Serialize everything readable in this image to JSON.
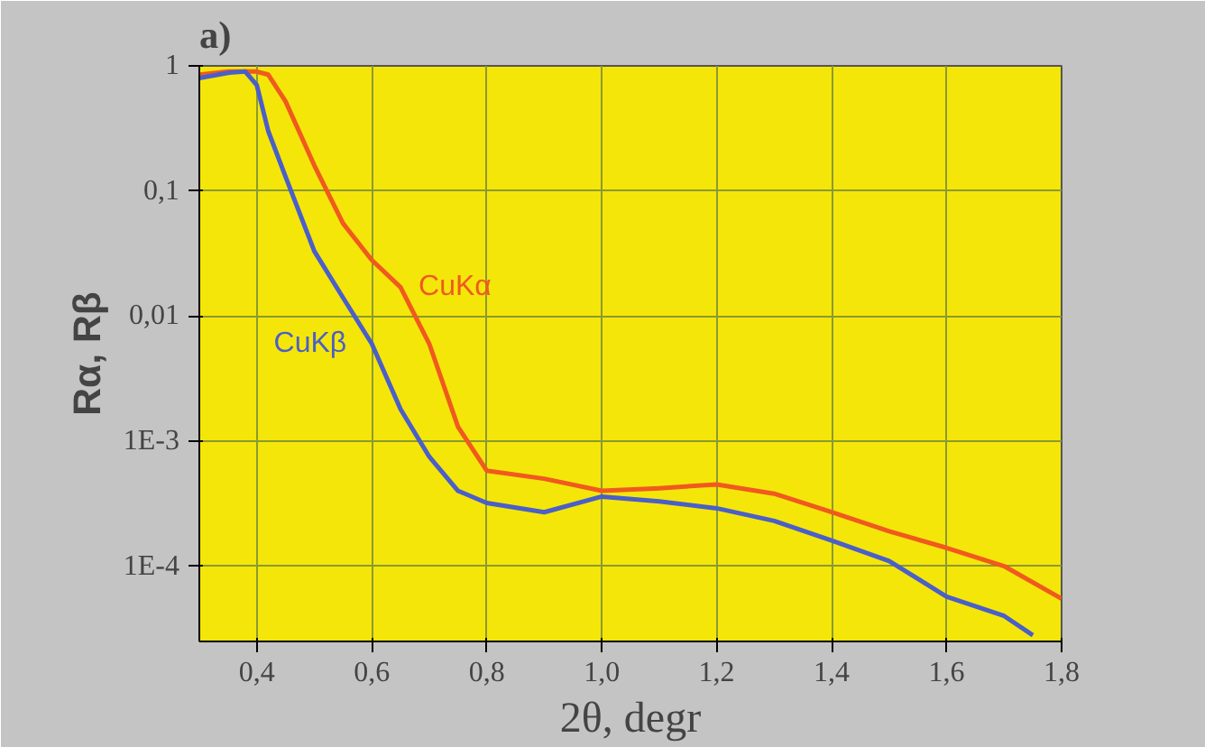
{
  "chart_data": {
    "type": "line",
    "title": "a)",
    "xlabel": "2θ, degr",
    "ylabel": "Rα, Rβ",
    "log": "y",
    "grid": true,
    "xlim": [
      0.3,
      1.8
    ],
    "ylim": [
      2.5e-05,
      1
    ],
    "xticks": [
      {
        "value": 0.4,
        "label": "0,4"
      },
      {
        "value": 0.6,
        "label": "0,6"
      },
      {
        "value": 0.8,
        "label": "0,8"
      },
      {
        "value": 1.0,
        "label": "1,0"
      },
      {
        "value": 1.2,
        "label": "1,2"
      },
      {
        "value": 1.4,
        "label": "1,4"
      },
      {
        "value": 1.6,
        "label": "1,6"
      },
      {
        "value": 1.8,
        "label": "1,8"
      }
    ],
    "yticks": [
      {
        "value": 0.0001,
        "label": "1E-4"
      },
      {
        "value": 0.001,
        "label": "1E-3"
      },
      {
        "value": 0.01,
        "label": "0,01"
      },
      1,
      {
        "value": 0.1,
        "label": "0,1"
      }
    ],
    "series": [
      {
        "color": "#f05a1e",
        "x": [
          0.3,
          0.35,
          0.4,
          0.42,
          0.45,
          0.5,
          0.55,
          0.6,
          0.65,
          0.7,
          0.75,
          0.8,
          0.9,
          1.0,
          1.1,
          1.2,
          1.3,
          1.4,
          1.5,
          1.6,
          1.7,
          1.8
        ],
        "values": [
          0.85,
          0.9,
          0.9,
          0.85,
          0.52,
          0.16,
          0.055,
          0.028,
          0.017,
          0.006,
          0.0013,
          0.00058,
          0.0005,
          0.0004,
          0.00042,
          0.00045,
          0.00038,
          0.00027,
          0.00019,
          0.00014,
          0.0001,
          5.5e-05
        ]
      },
      {
        "color": "#4a5fc8",
        "x": [
          0.3,
          0.35,
          0.38,
          0.4,
          0.42,
          0.45,
          0.5,
          0.55,
          0.6,
          0.65,
          0.7,
          0.75,
          0.8,
          0.9,
          1.0,
          1.1,
          1.2,
          1.3,
          1.4,
          1.5,
          1.6,
          1.7,
          1.75
        ],
        "values": [
          0.8,
          0.88,
          0.9,
          0.7,
          0.3,
          0.13,
          0.033,
          0.014,
          0.006,
          0.0018,
          0.00075,
          0.0004,
          0.00032,
          0.00027,
          0.00036,
          0.00033,
          0.00029,
          0.00023,
          0.00016,
          0.00011,
          5.7e-05,
          4e-05,
          2.8e-05
        ]
      }
    ],
    "annotations": [
      {
        "text": "CuKα",
        "x": 0.65,
        "y": 0.017
      },
      {
        "text": "CuKβ",
        "x": 0.6,
        "y": 0.006
      }
    ]
  }
}
